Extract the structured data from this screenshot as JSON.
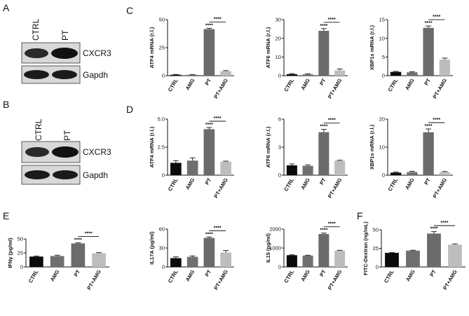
{
  "panels": {
    "A": "A",
    "B": "B",
    "C": "C",
    "D": "D",
    "E": "E",
    "F": "F"
  },
  "western_blots": [
    {
      "panel": "A",
      "lanes": [
        "CTRL",
        "PT"
      ],
      "bands": [
        "CXCR3",
        "Gapdh"
      ]
    },
    {
      "panel": "B",
      "lanes": [
        "CTRL",
        "PT"
      ],
      "bands": [
        "CXCR3",
        "Gapdh"
      ]
    }
  ],
  "colors": {
    "CTRL": "#0a0a0a",
    "AMG": "#6f6f6f",
    "PT": "#6b6b6b",
    "PT+AMG": "#bdbdbd",
    "axis": "#111111"
  },
  "significance_label": "****",
  "chart_data": [
    {
      "id": "C1",
      "panel": "C",
      "type": "bar",
      "ylabel": "ATF4 mRNA (r.l.)",
      "categories": [
        "CTRL",
        "AMG",
        "PT",
        "PT+AMG"
      ],
      "values": [
        0.8,
        0.6,
        41.5,
        4
      ],
      "errors": [
        0.3,
        0.3,
        0.8,
        0.5
      ],
      "ylim": [
        0,
        50
      ],
      "yticks": [
        "0",
        "25",
        "50"
      ],
      "tick_values": [
        0,
        25,
        50
      ],
      "stars": "****",
      "bracket": "****"
    },
    {
      "id": "C2",
      "panel": "C",
      "type": "bar",
      "ylabel": "ATF6 mRNA (r.l.)",
      "categories": [
        "CTRL",
        "AMG",
        "PT",
        "PT+AMG"
      ],
      "values": [
        0.8,
        0.7,
        24,
        2.8
      ],
      "errors": [
        0.3,
        0.3,
        1.2,
        0.8
      ],
      "ylim": [
        0,
        30
      ],
      "yticks": [
        "0",
        "10",
        "20",
        "30"
      ],
      "tick_values": [
        0,
        10,
        20,
        30
      ],
      "stars": "****",
      "bracket": "****"
    },
    {
      "id": "C3",
      "panel": "C",
      "type": "bar",
      "ylabel": "XBP1s mRNA (r.l.)",
      "categories": [
        "CTRL",
        "AMG",
        "PT",
        "PT+AMG"
      ],
      "values": [
        1,
        0.9,
        12.8,
        4.3
      ],
      "errors": [
        0.15,
        0.15,
        0.5,
        0.4
      ],
      "ylim": [
        0,
        15
      ],
      "yticks": [
        "0",
        "5",
        "10",
        "15"
      ],
      "tick_values": [
        0,
        5,
        10,
        15
      ],
      "stars": "****",
      "bracket": "****"
    },
    {
      "id": "D1",
      "panel": "D",
      "type": "bar",
      "ylabel": "ATF4 mRNA (r.l.)",
      "categories": [
        "CTRL",
        "AMG",
        "PT",
        "PT+AMG"
      ],
      "values": [
        1.1,
        1.3,
        4.1,
        1.2
      ],
      "errors": [
        0.2,
        0.25,
        0.15,
        0.05
      ],
      "ylim": [
        0,
        5
      ],
      "yticks": [
        "0",
        "2.5",
        "5.0"
      ],
      "tick_values": [
        0,
        2.5,
        5
      ],
      "stars": "****",
      "bracket": "****"
    },
    {
      "id": "D2",
      "panel": "D",
      "type": "bar",
      "ylabel": "ATF6 mRNA (r.l.)",
      "categories": [
        "CTRL",
        "AMG",
        "PT",
        "PT+AMG"
      ],
      "values": [
        1.05,
        1.0,
        4.6,
        1.55
      ],
      "errors": [
        0.15,
        0.1,
        0.3,
        0.05
      ],
      "ylim": [
        0,
        6
      ],
      "yticks": [
        "0",
        "3",
        "6"
      ],
      "tick_values": [
        0,
        3,
        6
      ],
      "stars": "****",
      "bracket": "****"
    },
    {
      "id": "D3",
      "panel": "D",
      "type": "bar",
      "ylabel": "XBP1s mRNA (r.l.)",
      "categories": [
        "CTRL",
        "AMG",
        "PT",
        "PT+AMG"
      ],
      "values": [
        0.9,
        1.1,
        15.3,
        1.1
      ],
      "errors": [
        0.2,
        0.3,
        1.2,
        0.2
      ],
      "ylim": [
        0,
        20
      ],
      "yticks": [
        "0",
        "10",
        "20"
      ],
      "tick_values": [
        0,
        10,
        20
      ],
      "stars": "****",
      "bracket": "****"
    },
    {
      "id": "E1",
      "panel": "E",
      "type": "bar",
      "ylabel": "IFNγ (pg/ml)",
      "categories": [
        "CTRL",
        "AMG",
        "PT",
        "PT+AMG"
      ],
      "values": [
        18.5,
        19.5,
        42,
        24.5
      ],
      "errors": [
        1,
        1.5,
        1,
        1
      ],
      "ylim": [
        0,
        50
      ],
      "yticks": [
        "0",
        "25",
        "50"
      ],
      "tick_values": [
        0,
        25,
        50
      ],
      "stars": "****",
      "bracket": "****"
    },
    {
      "id": "E2",
      "panel": "E",
      "type": "bar",
      "ylabel": "IL17A (pg/ml)",
      "categories": [
        "CTRL",
        "AMG",
        "PT",
        "PT+AMG"
      ],
      "values": [
        14,
        16,
        46,
        23
      ],
      "errors": [
        2,
        1.5,
        1.5,
        3
      ],
      "ylim": [
        0,
        60
      ],
      "yticks": [
        "0",
        "30",
        "60"
      ],
      "tick_values": [
        0,
        30,
        60
      ],
      "stars": "****",
      "bracket": "****"
    },
    {
      "id": "E3",
      "panel": "E",
      "type": "bar",
      "ylabel": "IL15 (pg/ml)",
      "categories": [
        "CTRL",
        "AMG",
        "PT",
        "PT+AMG"
      ],
      "values": [
        620,
        600,
        1740,
        860
      ],
      "errors": [
        20,
        20,
        50,
        20
      ],
      "ylim": [
        0,
        2000
      ],
      "yticks": [
        "0",
        "1000",
        "2000"
      ],
      "tick_values": [
        0,
        1000,
        2000
      ],
      "stars": "****",
      "bracket": "****"
    },
    {
      "id": "F1",
      "panel": "F",
      "type": "bar",
      "ylabel": "FITC-Dextran (ng/mL)",
      "categories": [
        "CTRL",
        "AMG",
        "PT",
        "PT+AMG"
      ],
      "values": [
        19,
        22,
        45,
        30
      ],
      "errors": [
        0.5,
        0.5,
        2.5,
        1
      ],
      "ylim": [
        0,
        50
      ],
      "yticks": [
        "0",
        "25",
        "50"
      ],
      "tick_values": [
        0,
        25,
        50
      ],
      "stars": "****",
      "bracket": "****"
    }
  ]
}
